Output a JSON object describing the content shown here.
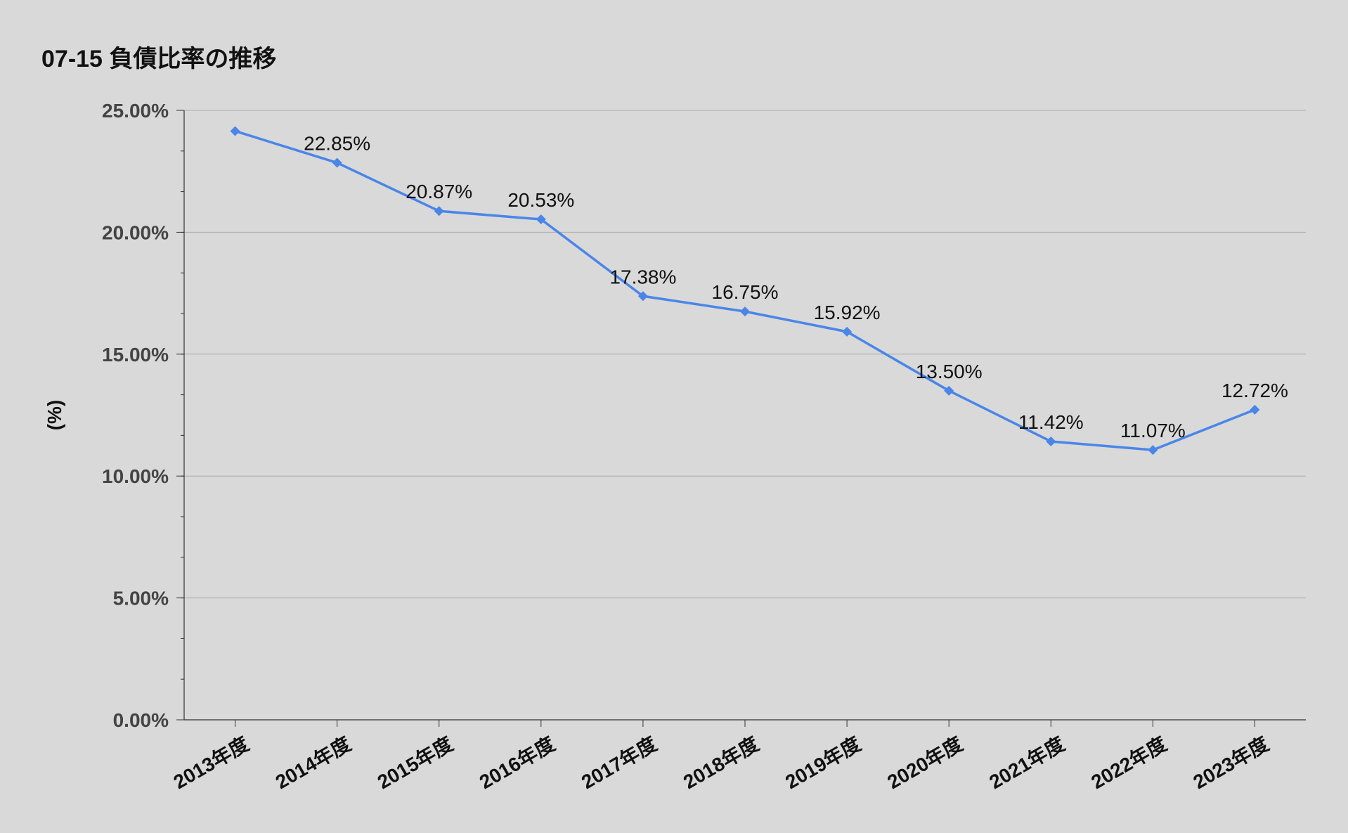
{
  "chart_data": {
    "type": "line",
    "title": "07-15 負債比率の推移",
    "ylabel": "(%)",
    "xlabel": "",
    "categories": [
      "2013年度",
      "2014年度",
      "2015年度",
      "2016年度",
      "2017年度",
      "2018年度",
      "2019年度",
      "2020年度",
      "2021年度",
      "2022年度",
      "2023年度"
    ],
    "series": [
      {
        "values": [
          24.15,
          22.85,
          20.87,
          20.53,
          17.38,
          16.75,
          15.92,
          13.5,
          11.42,
          11.07,
          12.72
        ],
        "data_labels": [
          "",
          "22.85%",
          "20.87%",
          "20.53%",
          "17.38%",
          "16.75%",
          "15.92%",
          "13.50%",
          "11.42%",
          "11.07%",
          "12.72%"
        ],
        "color": "#4a86e8"
      }
    ],
    "ylim": [
      0,
      25
    ],
    "yticks": [
      0,
      5,
      10,
      15,
      20,
      25
    ],
    "ytick_labels": [
      "0.00%",
      "5.00%",
      "10.00%",
      "15.00%",
      "20.00%",
      "25.00%"
    ],
    "grid": true,
    "legend": "none",
    "colors": {
      "background": "#d9d9d9",
      "gridline": "#aaaaaa",
      "axis": "#333333"
    }
  }
}
